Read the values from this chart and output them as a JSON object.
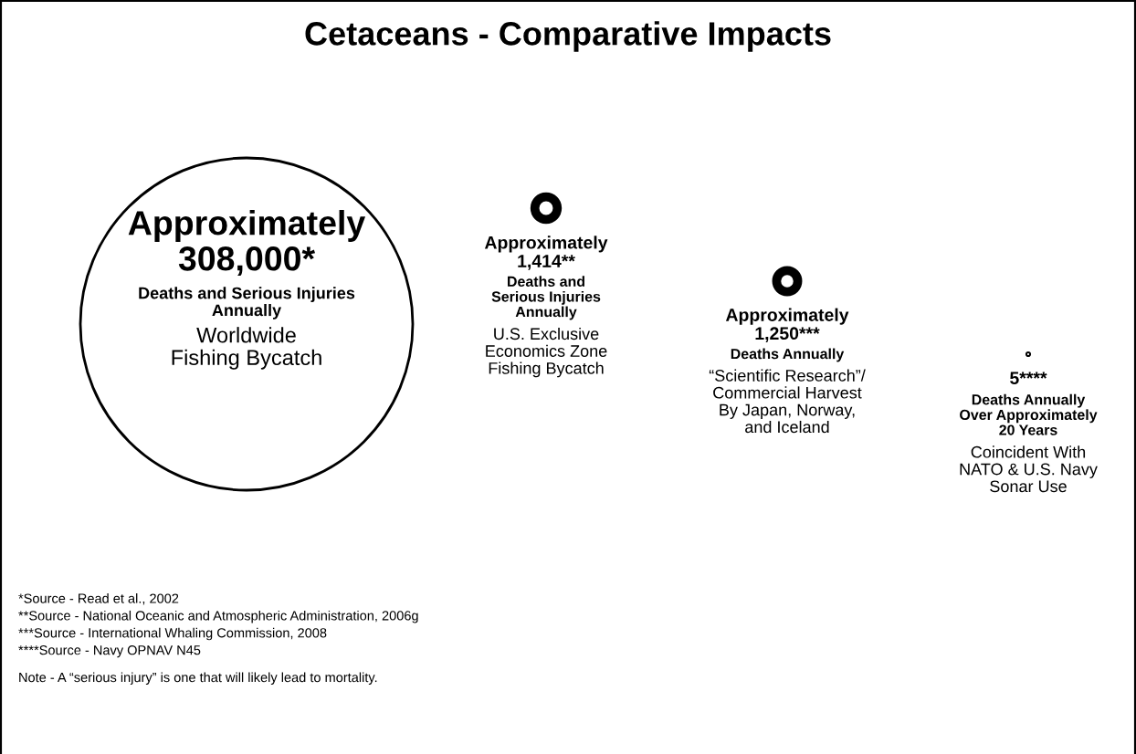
{
  "chart_data": {
    "type": "other",
    "title": "Cetaceans - Comparative Impacts",
    "categories": [
      "Worldwide\nFishing Bycatch",
      "U.S. Exclusive\nEconomics Zone\nFishing Bycatch",
      "“Scientific Research”/\nCommercial Harvest\nBy Japan, Norway,\nand Iceland",
      "Coincident With\nNATO & U.S. Navy\nSonar Use"
    ],
    "values": [
      308000,
      1414,
      1250,
      5
    ],
    "value_labels": [
      "Approximately\n308,000*",
      "Approximately\n1,414**",
      "Approximately\n1,250***",
      "5****"
    ],
    "color": "#000000",
    "annotations": [
      {
        "text": "Deaths and Serious Injuries\nAnnually",
        "x": "Worldwide\nFishing Bycatch"
      },
      {
        "text": "Deaths and\nSerious Injuries\nAnnually",
        "x": "U.S. Exclusive\nEconomics Zone\nFishing Bycatch"
      },
      {
        "text": "Deaths Annually",
        "x": "“Scientific Research”/\nCommercial Harvest\nBy Japan, Norway,\nand Iceland"
      },
      {
        "text": "Deaths Annually\nOver Approximately\n20 Years",
        "x": "Coincident With\nNATO & U.S. Navy\nSonar Use"
      },
      "*Source - Read et al., 2002\n**Source - National Oceanic and Atmospheric Administration, 2006g\n***Source - International Whaling Commission, 2008\n****Source - Navy OPNAV N45",
      "Note - A “serious injury” is one that will likely lead to mortality."
    ]
  }
}
